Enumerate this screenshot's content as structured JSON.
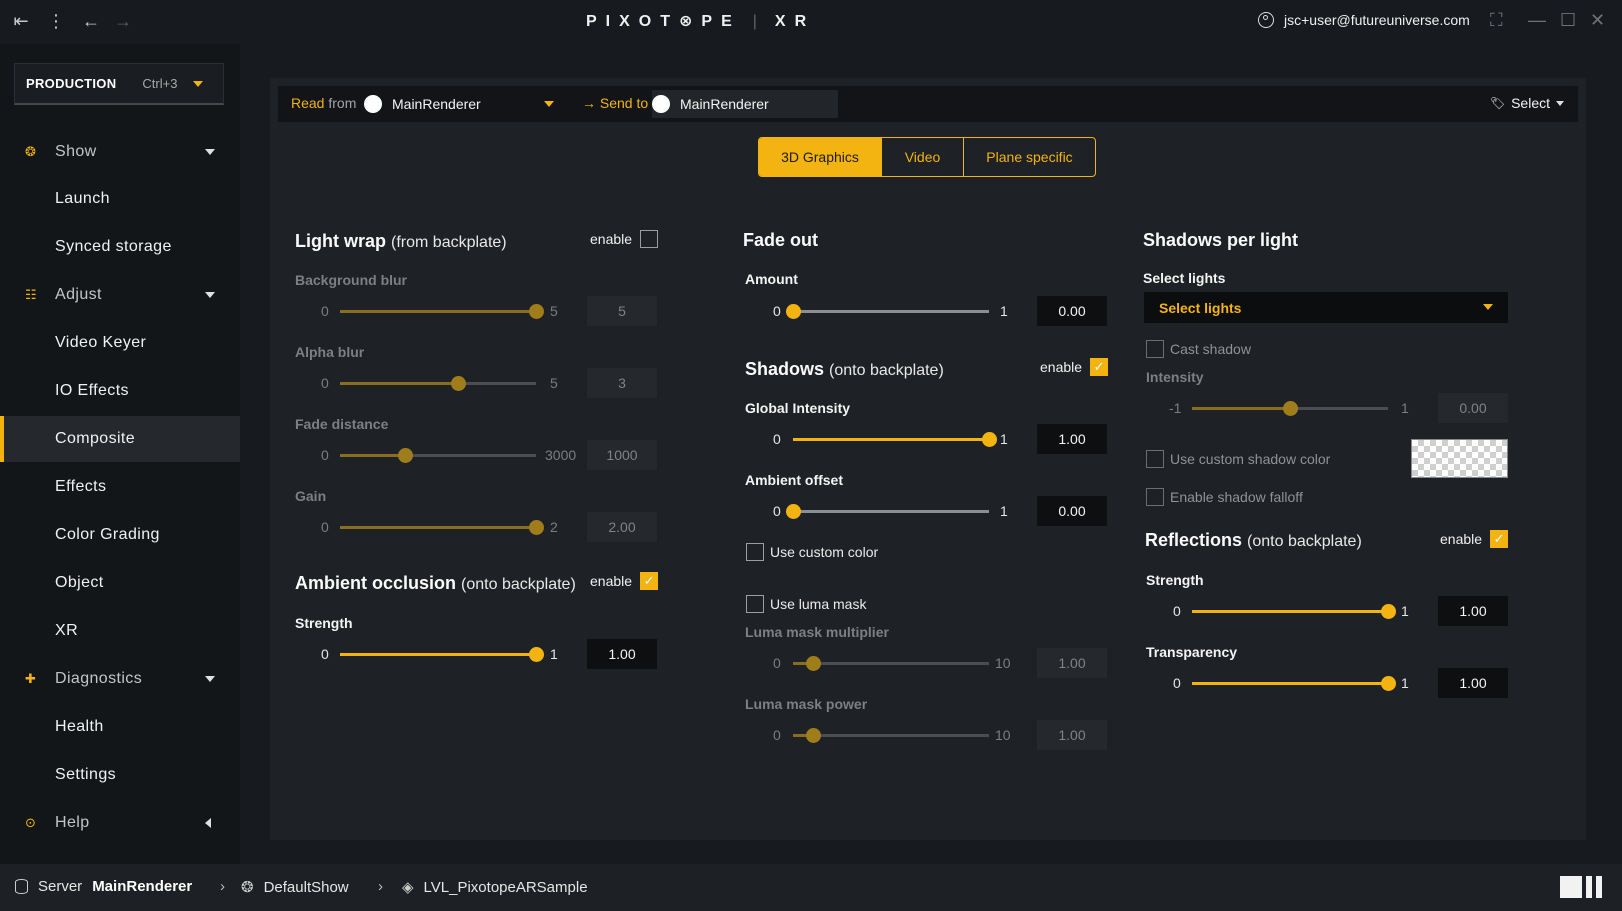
{
  "titlebar": {
    "logo_text": "PIXOT⊗PE",
    "logo_suffix": "XR",
    "user_email": "jsc+user@futureuniverse.com"
  },
  "sidebar": {
    "production": {
      "name": "PRODUCTION",
      "shortcut": "Ctrl+3"
    },
    "items": [
      {
        "label": "Show",
        "type": "section"
      },
      {
        "label": "Launch"
      },
      {
        "label": "Synced storage"
      },
      {
        "label": "Adjust",
        "type": "section"
      },
      {
        "label": "Video Keyer"
      },
      {
        "label": "IO Effects"
      },
      {
        "label": "Composite",
        "active": true
      },
      {
        "label": "Effects"
      },
      {
        "label": "Color Grading"
      },
      {
        "label": "Object"
      },
      {
        "label": "XR"
      },
      {
        "label": "Diagnostics",
        "type": "section"
      },
      {
        "label": "Health"
      },
      {
        "label": "Settings"
      },
      {
        "label": "Help",
        "type": "section"
      }
    ]
  },
  "toolbar": {
    "read_label": "Read",
    "from_label": "from",
    "read_source": "MainRenderer",
    "send_label": "→ Send to",
    "send_target": "MainRenderer",
    "select_label": "Select"
  },
  "tabs": [
    "3D Graphics",
    "Video",
    "Plane specific"
  ],
  "light_wrap": {
    "title": "Light wrap",
    "subtitle": "(from backplate)",
    "enable_label": "enable",
    "enabled": false,
    "background_blur": {
      "label": "Background blur",
      "min": "0",
      "max": "5",
      "value": "5",
      "fraction": 1.0
    },
    "alpha_blur": {
      "label": "Alpha blur",
      "min": "0",
      "max": "5",
      "value": "3",
      "fraction": 0.6
    },
    "fade_distance": {
      "label": "Fade distance",
      "min": "0",
      "max": "3000",
      "value": "1000",
      "fraction": 0.333
    },
    "gain": {
      "label": "Gain",
      "min": "0",
      "max": "2",
      "value": "2.00",
      "fraction": 1.0
    }
  },
  "ambient_occlusion": {
    "title": "Ambient occlusion",
    "subtitle": "(onto backplate)",
    "enable_label": "enable",
    "enabled": true,
    "strength": {
      "label": "Strength",
      "min": "0",
      "max": "1",
      "value": "1.00",
      "fraction": 1.0
    }
  },
  "fade_out": {
    "title": "Fade out",
    "amount": {
      "label": "Amount",
      "min": "0",
      "max": "1",
      "value": "0.00",
      "fraction": 0.0
    }
  },
  "shadows": {
    "title": "Shadows",
    "subtitle": "(onto backplate)",
    "enable_label": "enable",
    "enabled": true,
    "global_intensity": {
      "label": "Global Intensity",
      "min": "0",
      "max": "1",
      "value": "1.00",
      "fraction": 1.0
    },
    "ambient_offset": {
      "label": "Ambient offset",
      "min": "0",
      "max": "1",
      "value": "0.00",
      "fraction": 0.0
    },
    "use_custom_color": "Use custom color",
    "use_luma_mask": "Use luma mask",
    "luma_mask_multiplier": {
      "label": "Luma mask multiplier",
      "min": "0",
      "max": "10",
      "value": "1.00",
      "fraction": 0.1
    },
    "luma_mask_power": {
      "label": "Luma mask power",
      "min": "0",
      "max": "10",
      "value": "1.00",
      "fraction": 0.1
    }
  },
  "shadows_per_light": {
    "title": "Shadows per light",
    "select_lights_label": "Select lights",
    "select_lights_value": "Select lights",
    "cast_shadow": "Cast shadow",
    "intensity": {
      "label": "Intensity",
      "min": "-1",
      "max": "1",
      "value": "0.00",
      "fraction": 0.5
    },
    "use_custom_shadow_color": "Use custom shadow color",
    "enable_shadow_falloff": "Enable shadow falloff"
  },
  "reflections": {
    "title": "Reflections",
    "subtitle": "(onto backplate)",
    "enable_label": "enable",
    "enabled": true,
    "strength": {
      "label": "Strength",
      "min": "0",
      "max": "1",
      "value": "1.00",
      "fraction": 1.0
    },
    "transparency": {
      "label": "Transparency",
      "min": "0",
      "max": "1",
      "value": "1.00",
      "fraction": 1.0
    }
  },
  "bottombar": {
    "server_label": "Server",
    "server_name": "MainRenderer",
    "show": "DefaultShow",
    "level": "LVL_PixotopeARSample"
  },
  "colors": {
    "accent": "#f3b411",
    "background": "#1e2125",
    "sidebar": "#131619"
  }
}
